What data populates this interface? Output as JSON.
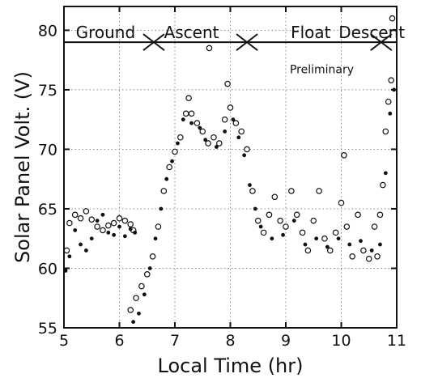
{
  "chart_data": {
    "type": "scatter",
    "xlabel": "Local Time (hr)",
    "ylabel": "Solar Panel Volt. (V)",
    "xlim": [
      5,
      11
    ],
    "ylim": [
      55,
      82
    ],
    "xticks": [
      5,
      6,
      7,
      8,
      9,
      10,
      11
    ],
    "yticks": [
      55,
      60,
      65,
      70,
      75,
      80
    ],
    "x_tick_labels": [
      "5",
      "6",
      "7",
      "8",
      "9",
      "10",
      "11"
    ],
    "y_tick_labels": [
      "55",
      "60",
      "65",
      "70",
      "75",
      "80"
    ],
    "grid": true,
    "annotation": "Preliminary",
    "phases": {
      "labels": [
        {
          "text": "Ground",
          "x": 5.75
        },
        {
          "text": "Ascent",
          "x": 7.3
        },
        {
          "text": "Float",
          "x": 9.45
        },
        {
          "text": "Descent",
          "x": 10.55
        }
      ],
      "line_y": 79,
      "boundaries_x": [
        6.62,
        8.3,
        10.72
      ]
    },
    "series": [
      {
        "marker": "open-circle",
        "points": [
          [
            5.05,
            61.5
          ],
          [
            5.1,
            63.8
          ],
          [
            5.2,
            64.5
          ],
          [
            5.3,
            64.2
          ],
          [
            5.4,
            64.8
          ],
          [
            5.5,
            64.1
          ],
          [
            5.6,
            63.5
          ],
          [
            5.7,
            63.2
          ],
          [
            5.8,
            63.6
          ],
          [
            5.9,
            63.8
          ],
          [
            6.0,
            64.2
          ],
          [
            6.1,
            64.0
          ],
          [
            6.2,
            63.7
          ],
          [
            6.25,
            63.2
          ],
          [
            6.2,
            56.5
          ],
          [
            6.3,
            57.5
          ],
          [
            6.4,
            58.5
          ],
          [
            6.5,
            59.5
          ],
          [
            6.6,
            61.0
          ],
          [
            6.7,
            63.5
          ],
          [
            6.8,
            66.5
          ],
          [
            6.9,
            68.5
          ],
          [
            7.0,
            69.8
          ],
          [
            7.1,
            71.0
          ],
          [
            7.2,
            73.0
          ],
          [
            7.25,
            74.3
          ],
          [
            7.3,
            73.0
          ],
          [
            7.4,
            72.2
          ],
          [
            7.5,
            71.5
          ],
          [
            7.6,
            70.5
          ],
          [
            7.62,
            78.5
          ],
          [
            7.7,
            71.0
          ],
          [
            7.8,
            70.5
          ],
          [
            7.9,
            72.5
          ],
          [
            7.95,
            75.5
          ],
          [
            8.0,
            73.5
          ],
          [
            8.1,
            72.2
          ],
          [
            8.2,
            71.5
          ],
          [
            8.3,
            70.0
          ],
          [
            8.4,
            66.5
          ],
          [
            8.5,
            64.0
          ],
          [
            8.6,
            63.0
          ],
          [
            8.7,
            64.5
          ],
          [
            8.8,
            66.0
          ],
          [
            8.9,
            64.0
          ],
          [
            9.0,
            63.5
          ],
          [
            9.1,
            66.5
          ],
          [
            9.2,
            64.5
          ],
          [
            9.3,
            63.0
          ],
          [
            9.4,
            61.5
          ],
          [
            9.5,
            64.0
          ],
          [
            9.6,
            66.5
          ],
          [
            9.7,
            62.5
          ],
          [
            9.8,
            61.5
          ],
          [
            9.9,
            63.0
          ],
          [
            10.0,
            65.5
          ],
          [
            10.05,
            69.5
          ],
          [
            10.1,
            63.5
          ],
          [
            10.2,
            61.0
          ],
          [
            10.3,
            64.5
          ],
          [
            10.4,
            61.5
          ],
          [
            10.5,
            60.8
          ],
          [
            10.6,
            63.5
          ],
          [
            10.65,
            61.0
          ],
          [
            10.7,
            64.5
          ],
          [
            10.75,
            67.0
          ],
          [
            10.8,
            71.5
          ],
          [
            10.85,
            74.0
          ],
          [
            10.9,
            75.8
          ],
          [
            10.92,
            81.0
          ]
        ]
      },
      {
        "marker": "filled-dot",
        "points": [
          [
            5.03,
            59.8
          ],
          [
            5.1,
            61.0
          ],
          [
            5.2,
            63.2
          ],
          [
            5.3,
            62.0
          ],
          [
            5.4,
            61.5
          ],
          [
            5.5,
            62.5
          ],
          [
            5.6,
            64.0
          ],
          [
            5.7,
            64.5
          ],
          [
            5.8,
            63.0
          ],
          [
            5.9,
            62.8
          ],
          [
            6.0,
            63.5
          ],
          [
            6.1,
            62.7
          ],
          [
            6.2,
            63.3
          ],
          [
            6.28,
            63.0
          ],
          [
            6.25,
            55.5
          ],
          [
            6.35,
            56.2
          ],
          [
            6.45,
            57.8
          ],
          [
            6.55,
            60.0
          ],
          [
            6.65,
            62.5
          ],
          [
            6.75,
            65.0
          ],
          [
            6.85,
            67.5
          ],
          [
            6.95,
            69.0
          ],
          [
            7.05,
            70.5
          ],
          [
            7.15,
            72.5
          ],
          [
            7.3,
            72.2
          ],
          [
            7.45,
            71.8
          ],
          [
            7.55,
            70.8
          ],
          [
            7.75,
            70.2
          ],
          [
            7.9,
            71.5
          ],
          [
            8.05,
            72.5
          ],
          [
            8.15,
            71.0
          ],
          [
            8.25,
            69.5
          ],
          [
            8.35,
            67.0
          ],
          [
            8.45,
            65.0
          ],
          [
            8.55,
            63.5
          ],
          [
            8.75,
            62.5
          ],
          [
            8.95,
            62.8
          ],
          [
            9.15,
            64.0
          ],
          [
            9.35,
            62.0
          ],
          [
            9.55,
            62.5
          ],
          [
            9.75,
            61.8
          ],
          [
            9.95,
            62.5
          ],
          [
            10.15,
            62.0
          ],
          [
            10.35,
            62.3
          ],
          [
            10.55,
            61.5
          ],
          [
            10.7,
            62.0
          ],
          [
            10.8,
            68.0
          ],
          [
            10.88,
            73.0
          ],
          [
            10.95,
            75.0
          ]
        ]
      }
    ]
  }
}
